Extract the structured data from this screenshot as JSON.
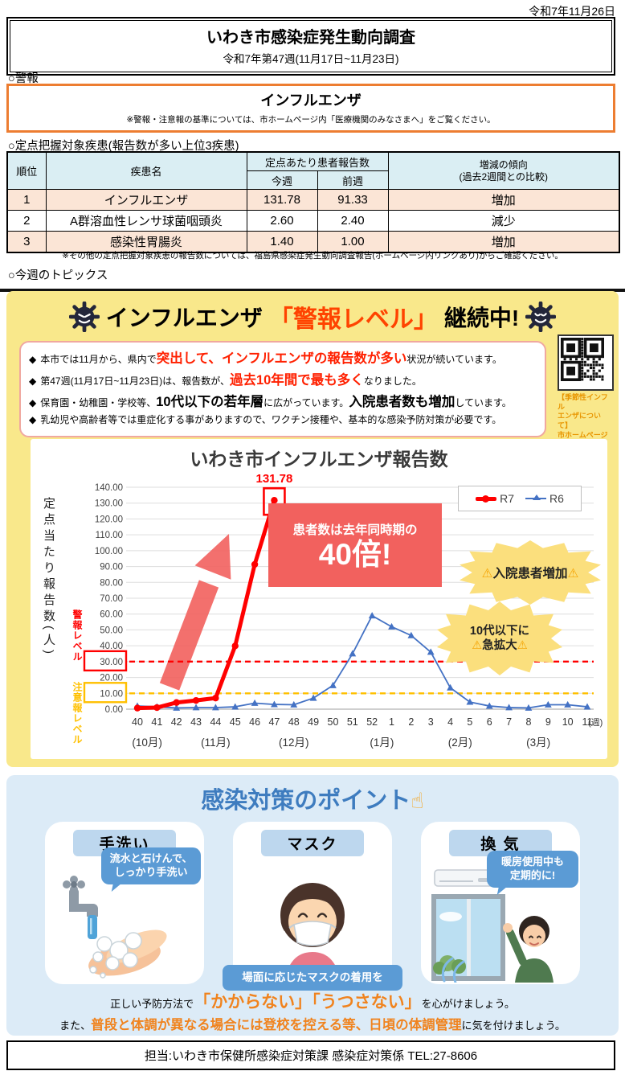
{
  "page": {
    "date": "令和7年11月26日"
  },
  "header": {
    "title": "いわき市感染症発生動向調査",
    "subtitle": "令和7年第47週(11月17日~11月23日)"
  },
  "alert": {
    "section_label": "○警報",
    "disease": "インフルエンザ",
    "note": "※警報・注意報の基準については、市ホームページ内「医療機関のみなさまへ」をご覧ください。"
  },
  "ranking": {
    "section_label": "○定点把握対象疾患(報告数が多い上位3疾患)",
    "headers": {
      "rank": "順位",
      "disease": "疾患名",
      "count_group": "定点あたり患者報告数",
      "this_week": "今週",
      "last_week": "前週",
      "trend": "増減の傾向\n(過去2週間との比較)"
    },
    "rows": [
      {
        "rank": "1",
        "name": "インフルエンザ",
        "this_week": "131.78",
        "last_week": "91.33",
        "trend": "増加"
      },
      {
        "rank": "2",
        "name": "A群溶血性レンサ球菌咽頭炎",
        "this_week": "2.60",
        "last_week": "2.40",
        "trend": "減少"
      },
      {
        "rank": "3",
        "name": "感染性胃腸炎",
        "this_week": "1.40",
        "last_week": "1.00",
        "trend": "増加"
      }
    ],
    "footnote": "※その他の定点把握対象疾患の報告数については、福島県感染症発生動向調査報告(ホームページ内リンクあり)からご確認ください。"
  },
  "topics": {
    "section_label": "○今週のトピックス",
    "title": {
      "pre": "インフルエンザ",
      "em": "「警報レベル」",
      "post": "継続中!"
    },
    "bullets": {
      "b1": {
        "marker": "◆",
        "pre": "本市では11月から、県内で",
        "em": "突出して、インフルエンザの報告数が多い",
        "post": "状況が続いています。"
      },
      "b2": {
        "marker": "◆",
        "pre": "第47週(11月17日~11月23日)は、報告数が、",
        "em": "過去10年間で最も多く",
        "post": "なりました。"
      },
      "b3": {
        "marker": "◆",
        "pre": "保育園・幼稚園・学校等、",
        "em1": "10代以下の若年層",
        "mid": "に広がっています。",
        "em2": "入院患者数も増加",
        "post": "しています。"
      },
      "b4": {
        "marker": "◆",
        "text": "乳幼児や高齢者等では重症化する事がありますので、ワクチン接種や、基本的な感染予防対策が必要です。"
      }
    },
    "qr_caption": "【季節性インフル\nエンザについて】\n市ホームページ"
  },
  "chart_data": {
    "type": "line",
    "title": "いわき市インフルエンザ報告数",
    "ylabel": "定点当たり報告数(人)",
    "ylim": [
      0,
      140
    ],
    "ytick_step": 10,
    "grid": true,
    "x_unit": "(週)",
    "categories": [
      "40",
      "41",
      "42",
      "43",
      "44",
      "45",
      "46",
      "47",
      "48",
      "49",
      "50",
      "51",
      "52",
      "1",
      "2",
      "3",
      "4",
      "5",
      "6",
      "7",
      "8",
      "9",
      "10",
      "11"
    ],
    "month_labels": [
      {
        "label": "(10月)",
        "index": 0.5
      },
      {
        "label": "(11月)",
        "index": 4
      },
      {
        "label": "(12月)",
        "index": 8
      },
      {
        "label": "(1月)",
        "index": 12.5
      },
      {
        "label": "(2月)",
        "index": 16.5
      },
      {
        "label": "(3月)",
        "index": 20.5
      }
    ],
    "series": [
      {
        "name": "R7",
        "color": "#FF0000",
        "marker": "circle",
        "values": [
          0.7,
          1.0,
          4.2,
          5.5,
          7.0,
          39.9,
          91.33,
          131.78
        ]
      },
      {
        "name": "R6",
        "color": "#4472C4",
        "marker": "triangle",
        "values": [
          2.0,
          1.5,
          0.8,
          1.0,
          1.0,
          1.5,
          3.8,
          3.0,
          2.8,
          7.0,
          15.0,
          35.0,
          59.0,
          52.0,
          46.5,
          36.0,
          13.5,
          4.5,
          2.0,
          1.0,
          0.8,
          2.8,
          2.8,
          1.5
        ]
      }
    ],
    "peak_label": "131.78",
    "thresholds": [
      {
        "label": "警報レベル",
        "value": 30,
        "color": "#FF0000"
      },
      {
        "label": "注意報レベル",
        "value": 10,
        "color": "#FFC000"
      }
    ],
    "legend_position": "top-right",
    "annotations": {
      "callout": {
        "line1": "患者数は去年同時期の",
        "line2": "40倍!"
      },
      "star1": {
        "w1": "⚠",
        "label": "入院患者増加",
        "w2": "⚠"
      },
      "star2": {
        "line1": "10代以下に",
        "w1": "⚠",
        "label": "急拡大",
        "w2": "⚠"
      }
    }
  },
  "prevention": {
    "title": "感染対策のポイント",
    "title_icon": "☝",
    "cards": [
      {
        "label": "手洗い",
        "bubble": "流水と石けんで、\nしっかり手洗い"
      },
      {
        "label": "マスク",
        "bubble": "場面に応じたマスクの着用を"
      },
      {
        "label": "換 気",
        "bubble": "暖房使用中も\n定期的に!"
      }
    ],
    "line1": {
      "pre": "正しい予防方法で",
      "em": "「かからない」「うつさない」",
      "post": "を心がけましょう。"
    },
    "line2": {
      "pre": "また、",
      "em": "普段と体調が異なる場合には登校を控える等、日頃の体調管理",
      "post": "に気を付けましょう。"
    }
  },
  "footer": {
    "contact": "担当:いわき市保健所感染症対策課 感染症対策係 TEL:27-8606"
  },
  "colors": {
    "accent_orange": "#ED7D31",
    "table_header_blue": "#DAEEF3",
    "table_row_peach": "#FBE5D6",
    "topic_yellow": "#F9E88B",
    "alert_red": "#FF0000",
    "caution_yellow": "#FFC000",
    "series_r7": "#FF0000",
    "series_r6": "#4472C4",
    "panel_blue": "#DCEBF7",
    "bubble_blue": "#5B9BD5",
    "emphasis_orange": "#F0831E"
  }
}
